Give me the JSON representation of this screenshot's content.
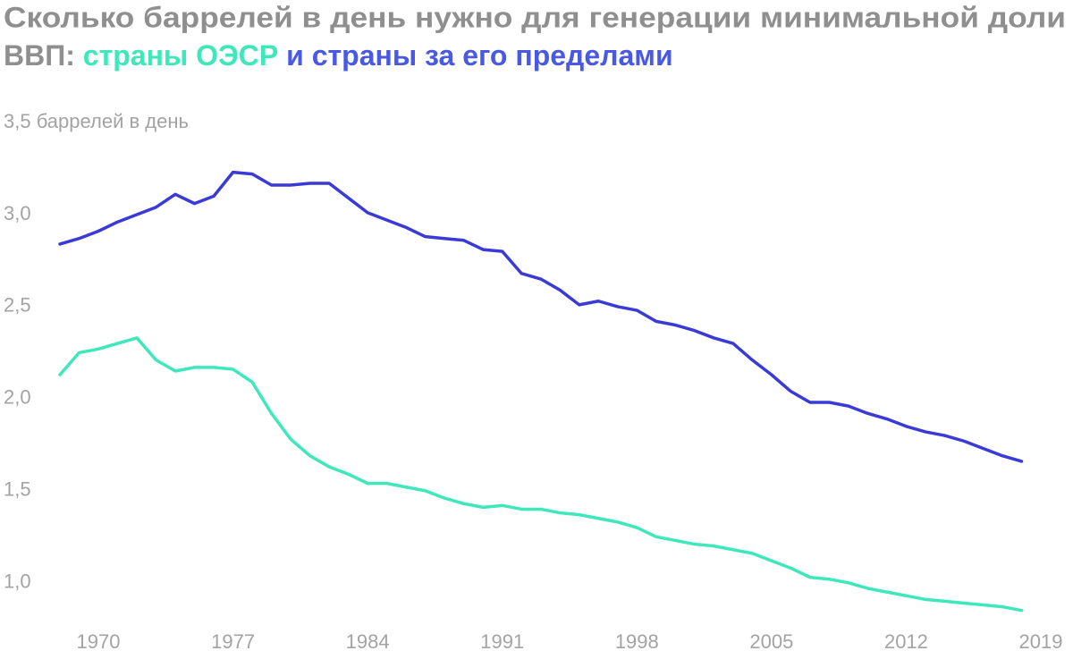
{
  "chart_data": {
    "type": "line",
    "title": [
      "Сколько баррелей в день нужно для генерации минимальной доли",
      "ВВП:"
    ],
    "x": [
      1968,
      1969,
      1970,
      1971,
      1972,
      1973,
      1974,
      1975,
      1976,
      1977,
      1978,
      1979,
      1980,
      1981,
      1982,
      1983,
      1984,
      1985,
      1986,
      1987,
      1988,
      1989,
      1990,
      1991,
      1992,
      1993,
      1994,
      1995,
      1996,
      1997,
      1998,
      1999,
      2000,
      2001,
      2002,
      2003,
      2004,
      2005,
      2006,
      2007,
      2008,
      2009,
      2010,
      2011,
      2012,
      2013,
      2014,
      2015,
      2016,
      2017,
      2018
    ],
    "series": [
      {
        "name": "страны ОЭСР",
        "color": "#3ee8bb",
        "values": [
          2.13,
          2.25,
          2.27,
          2.3,
          2.33,
          2.21,
          2.15,
          2.17,
          2.17,
          2.16,
          2.09,
          1.92,
          1.78,
          1.69,
          1.63,
          1.59,
          1.54,
          1.54,
          1.52,
          1.5,
          1.46,
          1.43,
          1.41,
          1.42,
          1.4,
          1.4,
          1.38,
          1.37,
          1.35,
          1.33,
          1.3,
          1.25,
          1.23,
          1.21,
          1.2,
          1.18,
          1.16,
          1.12,
          1.08,
          1.03,
          1.02,
          1.0,
          0.97,
          0.95,
          0.93,
          0.91,
          0.9,
          0.89,
          0.88,
          0.87,
          0.85
        ]
      },
      {
        "name": "и страны за его пределами",
        "color": "#3a3ad6",
        "values": [
          2.84,
          2.87,
          2.91,
          2.96,
          3.0,
          3.04,
          3.11,
          3.06,
          3.1,
          3.23,
          3.22,
          3.16,
          3.16,
          3.17,
          3.17,
          3.09,
          3.01,
          2.97,
          2.93,
          2.88,
          2.87,
          2.86,
          2.81,
          2.8,
          2.68,
          2.65,
          2.59,
          2.51,
          2.53,
          2.5,
          2.48,
          2.42,
          2.4,
          2.37,
          2.33,
          2.3,
          2.21,
          2.13,
          2.04,
          1.98,
          1.98,
          1.96,
          1.92,
          1.89,
          1.85,
          1.82,
          1.8,
          1.77,
          1.73,
          1.69,
          1.66
        ]
      }
    ],
    "xlim": [
      1968,
      2019
    ],
    "xticks": [
      1970,
      1977,
      1984,
      1991,
      1998,
      2005,
      2012,
      2019
    ],
    "ylim": [
      0.8,
      3.5
    ],
    "yticks": [
      {
        "value": 1.0,
        "label": "1,0"
      },
      {
        "value": 1.5,
        "label": "1,5"
      },
      {
        "value": 2.0,
        "label": "2,0"
      },
      {
        "value": 2.5,
        "label": "2,5"
      },
      {
        "value": 3.0,
        "label": "3,0"
      },
      {
        "value": 3.5,
        "label": "3,5 баррелей в день"
      }
    ],
    "grid": false
  }
}
